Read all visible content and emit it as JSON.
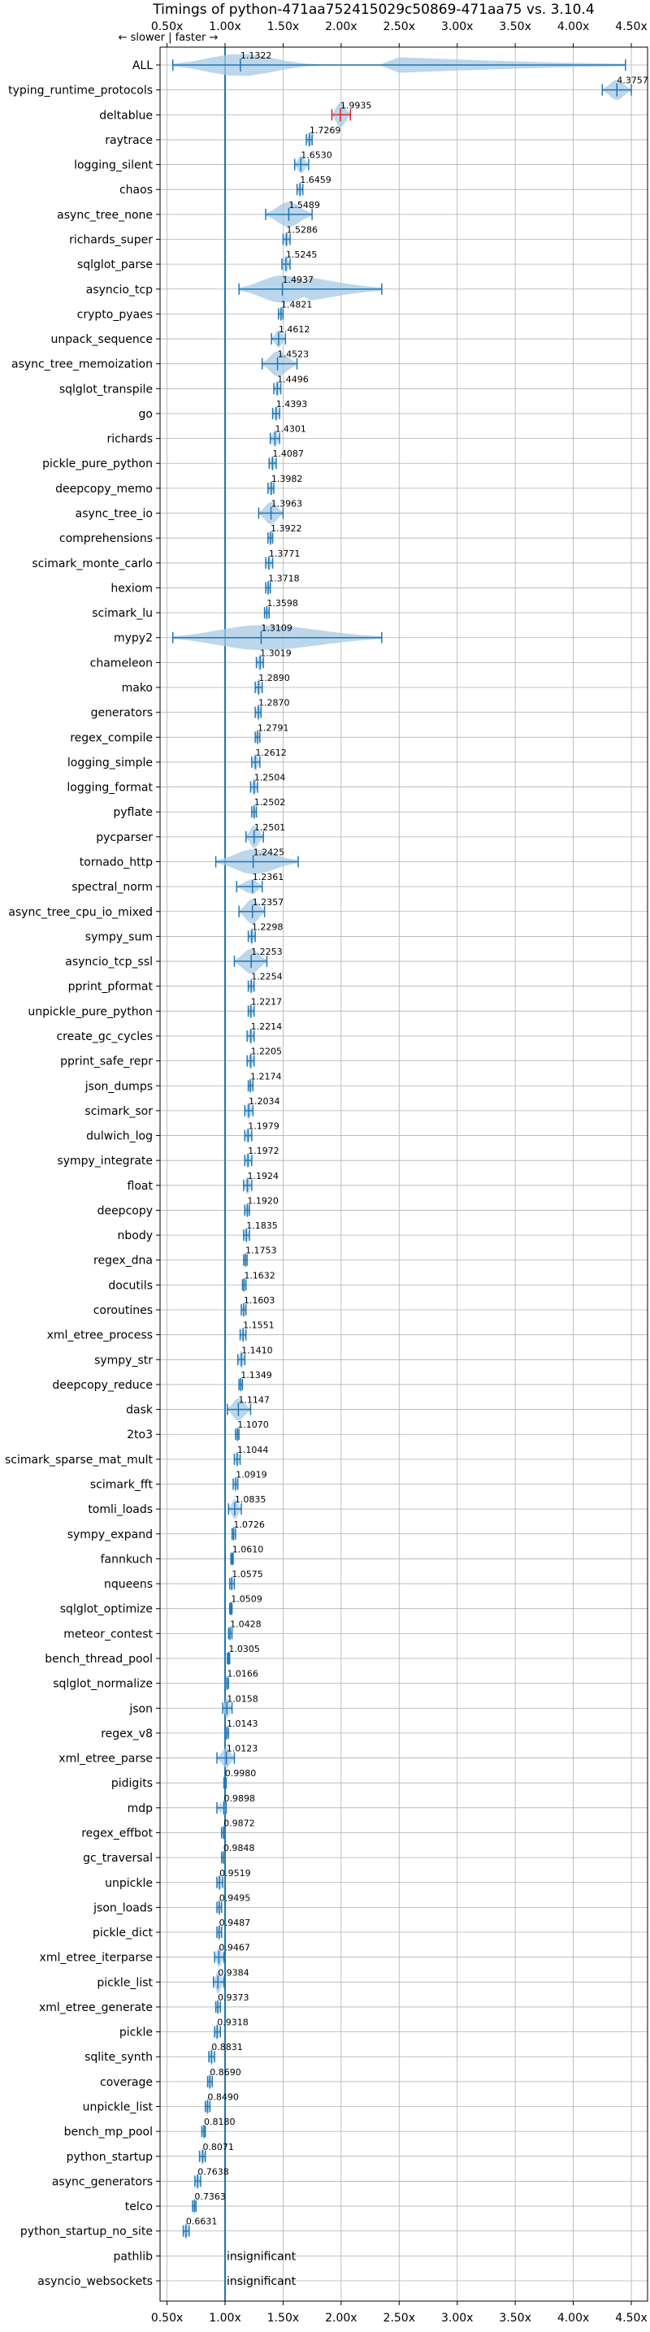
{
  "chart_data": {
    "type": "violin",
    "title": "Timings of python-471aa752415029c50869-471aa75 vs. 3.10.4",
    "direction_label": "← slower | faster →",
    "xlim": [
      0.44,
      4.64
    ],
    "xticks": [
      0.5,
      1.0,
      1.5,
      2.0,
      2.5,
      3.0,
      3.5,
      4.0,
      4.5
    ],
    "xtick_labels": [
      "0.50x",
      "1.00x",
      "1.50x",
      "2.00x",
      "2.50x",
      "3.00x",
      "3.50x",
      "4.00x",
      "4.50x"
    ],
    "reference_line": 1.0,
    "grid": true,
    "colors": {
      "violin": "#a6c8e6",
      "line": "#1f77b4",
      "highlight": "#d62728"
    },
    "benchmarks": [
      {
        "name": "ALL",
        "value": 1.1322,
        "value_label": "1.1322",
        "lo": 0.55,
        "hi": 4.45,
        "width": 0.45
      },
      {
        "name": "typing_runtime_protocols",
        "value": 4.3757,
        "value_label": "4.3757",
        "lo": 4.25,
        "hi": 4.5,
        "width": 0.4
      },
      {
        "name": "deltablue",
        "value": 1.9935,
        "value_label": "1.9935",
        "lo": 1.92,
        "hi": 2.08,
        "width": 0.5,
        "highlight": true
      },
      {
        "name": "raytrace",
        "value": 1.7269,
        "value_label": "1.7269",
        "lo": 1.7,
        "hi": 1.75,
        "width": 0.3
      },
      {
        "name": "logging_silent",
        "value": 1.653,
        "value_label": "1.6530",
        "lo": 1.6,
        "hi": 1.72,
        "width": 0.35
      },
      {
        "name": "chaos",
        "value": 1.6459,
        "value_label": "1.6459",
        "lo": 1.62,
        "hi": 1.67,
        "width": 0.3
      },
      {
        "name": "async_tree_none",
        "value": 1.5489,
        "value_label": "1.5489",
        "lo": 1.35,
        "hi": 1.75,
        "width": 0.5
      },
      {
        "name": "richards_super",
        "value": 1.5286,
        "value_label": "1.5286",
        "lo": 1.5,
        "hi": 1.56,
        "width": 0.3
      },
      {
        "name": "sqlglot_parse",
        "value": 1.5245,
        "value_label": "1.5245",
        "lo": 1.49,
        "hi": 1.56,
        "width": 0.35
      },
      {
        "name": "asyncio_tcp",
        "value": 1.4937,
        "value_label": "1.4937",
        "lo": 1.12,
        "hi": 2.35,
        "width": 0.55
      },
      {
        "name": "crypto_pyaes",
        "value": 1.4821,
        "value_label": "1.4821",
        "lo": 1.46,
        "hi": 1.5,
        "width": 0.3
      },
      {
        "name": "unpack_sequence",
        "value": 1.4612,
        "value_label": "1.4612",
        "lo": 1.4,
        "hi": 1.52,
        "width": 0.35
      },
      {
        "name": "async_tree_memoization",
        "value": 1.4523,
        "value_label": "1.4523",
        "lo": 1.32,
        "hi": 1.62,
        "width": 0.5
      },
      {
        "name": "sqlglot_transpile",
        "value": 1.4496,
        "value_label": "1.4496",
        "lo": 1.42,
        "hi": 1.48,
        "width": 0.3
      },
      {
        "name": "go",
        "value": 1.4393,
        "value_label": "1.4393",
        "lo": 1.41,
        "hi": 1.47,
        "width": 0.3
      },
      {
        "name": "richards",
        "value": 1.4301,
        "value_label": "1.4301",
        "lo": 1.39,
        "hi": 1.47,
        "width": 0.35
      },
      {
        "name": "pickle_pure_python",
        "value": 1.4087,
        "value_label": "1.4087",
        "lo": 1.38,
        "hi": 1.44,
        "width": 0.3
      },
      {
        "name": "deepcopy_memo",
        "value": 1.3982,
        "value_label": "1.3982",
        "lo": 1.37,
        "hi": 1.42,
        "width": 0.3
      },
      {
        "name": "async_tree_io",
        "value": 1.3963,
        "value_label": "1.3963",
        "lo": 1.29,
        "hi": 1.5,
        "width": 0.45
      },
      {
        "name": "comprehensions",
        "value": 1.3922,
        "value_label": "1.3922",
        "lo": 1.37,
        "hi": 1.41,
        "width": 0.3
      },
      {
        "name": "scimark_monte_carlo",
        "value": 1.3771,
        "value_label": "1.3771",
        "lo": 1.35,
        "hi": 1.41,
        "width": 0.3
      },
      {
        "name": "hexiom",
        "value": 1.3718,
        "value_label": "1.3718",
        "lo": 1.35,
        "hi": 1.39,
        "width": 0.3
      },
      {
        "name": "scimark_lu",
        "value": 1.3598,
        "value_label": "1.3598",
        "lo": 1.34,
        "hi": 1.38,
        "width": 0.25
      },
      {
        "name": "mypy2",
        "value": 1.3109,
        "value_label": "1.3109",
        "lo": 0.55,
        "hi": 2.35,
        "width": 0.5
      },
      {
        "name": "chameleon",
        "value": 1.3019,
        "value_label": "1.3019",
        "lo": 1.27,
        "hi": 1.33,
        "width": 0.35
      },
      {
        "name": "mako",
        "value": 1.289,
        "value_label": "1.2890",
        "lo": 1.26,
        "hi": 1.32,
        "width": 0.35
      },
      {
        "name": "generators",
        "value": 1.287,
        "value_label": "1.2870",
        "lo": 1.26,
        "hi": 1.31,
        "width": 0.35
      },
      {
        "name": "regex_compile",
        "value": 1.2791,
        "value_label": "1.2791",
        "lo": 1.26,
        "hi": 1.3,
        "width": 0.3
      },
      {
        "name": "logging_simple",
        "value": 1.2612,
        "value_label": "1.2612",
        "lo": 1.23,
        "hi": 1.3,
        "width": 0.35
      },
      {
        "name": "logging_format",
        "value": 1.2504,
        "value_label": "1.2504",
        "lo": 1.22,
        "hi": 1.28,
        "width": 0.35
      },
      {
        "name": "pyflate",
        "value": 1.2502,
        "value_label": "1.2502",
        "lo": 1.23,
        "hi": 1.27,
        "width": 0.3
      },
      {
        "name": "pycparser",
        "value": 1.2501,
        "value_label": "1.2501",
        "lo": 1.18,
        "hi": 1.33,
        "width": 0.45
      },
      {
        "name": "tornado_http",
        "value": 1.2425,
        "value_label": "1.2425",
        "lo": 0.92,
        "hi": 1.63,
        "width": 0.5
      },
      {
        "name": "spectral_norm",
        "value": 1.2361,
        "value_label": "1.2361",
        "lo": 1.1,
        "hi": 1.32,
        "width": 0.3
      },
      {
        "name": "async_tree_cpu_io_mixed",
        "value": 1.2357,
        "value_label": "1.2357",
        "lo": 1.12,
        "hi": 1.34,
        "width": 0.5
      },
      {
        "name": "sympy_sum",
        "value": 1.2298,
        "value_label": "1.2298",
        "lo": 1.2,
        "hi": 1.26,
        "width": 0.35
      },
      {
        "name": "asyncio_tcp_ssl",
        "value": 1.2253,
        "value_label": "1.2253",
        "lo": 1.08,
        "hi": 1.36,
        "width": 0.5
      },
      {
        "name": "pprint_pformat",
        "value": 1.2254,
        "value_label": "1.2254",
        "lo": 1.2,
        "hi": 1.25,
        "width": 0.3
      },
      {
        "name": "unpickle_pure_python",
        "value": 1.2217,
        "value_label": "1.2217",
        "lo": 1.2,
        "hi": 1.25,
        "width": 0.3
      },
      {
        "name": "create_gc_cycles",
        "value": 1.2214,
        "value_label": "1.2214",
        "lo": 1.19,
        "hi": 1.25,
        "width": 0.35
      },
      {
        "name": "pprint_safe_repr",
        "value": 1.2205,
        "value_label": "1.2205",
        "lo": 1.19,
        "hi": 1.25,
        "width": 0.35
      },
      {
        "name": "json_dumps",
        "value": 1.2174,
        "value_label": "1.2174",
        "lo": 1.2,
        "hi": 1.24,
        "width": 0.3
      },
      {
        "name": "scimark_sor",
        "value": 1.2034,
        "value_label": "1.2034",
        "lo": 1.17,
        "hi": 1.24,
        "width": 0.35
      },
      {
        "name": "dulwich_log",
        "value": 1.1979,
        "value_label": "1.1979",
        "lo": 1.17,
        "hi": 1.23,
        "width": 0.3
      },
      {
        "name": "sympy_integrate",
        "value": 1.1972,
        "value_label": "1.1972",
        "lo": 1.17,
        "hi": 1.23,
        "width": 0.3
      },
      {
        "name": "float",
        "value": 1.1924,
        "value_label": "1.1924",
        "lo": 1.16,
        "hi": 1.23,
        "width": 0.35
      },
      {
        "name": "deepcopy",
        "value": 1.192,
        "value_label": "1.1920",
        "lo": 1.17,
        "hi": 1.21,
        "width": 0.3
      },
      {
        "name": "nbody",
        "value": 1.1835,
        "value_label": "1.1835",
        "lo": 1.16,
        "hi": 1.21,
        "width": 0.3
      },
      {
        "name": "regex_dna",
        "value": 1.1753,
        "value_label": "1.1753",
        "lo": 1.16,
        "hi": 1.19,
        "width": 0.3
      },
      {
        "name": "docutils",
        "value": 1.1632,
        "value_label": "1.1632",
        "lo": 1.15,
        "hi": 1.18,
        "width": 0.3
      },
      {
        "name": "coroutines",
        "value": 1.1603,
        "value_label": "1.1603",
        "lo": 1.14,
        "hi": 1.18,
        "width": 0.3
      },
      {
        "name": "xml_etree_process",
        "value": 1.1551,
        "value_label": "1.1551",
        "lo": 1.13,
        "hi": 1.18,
        "width": 0.3
      },
      {
        "name": "sympy_str",
        "value": 1.141,
        "value_label": "1.1410",
        "lo": 1.11,
        "hi": 1.17,
        "width": 0.35
      },
      {
        "name": "deepcopy_reduce",
        "value": 1.1349,
        "value_label": "1.1349",
        "lo": 1.12,
        "hi": 1.15,
        "width": 0.3
      },
      {
        "name": "dask",
        "value": 1.1147,
        "value_label": "1.1147",
        "lo": 1.02,
        "hi": 1.22,
        "width": 0.45
      },
      {
        "name": "2to3",
        "value": 1.107,
        "value_label": "1.1070",
        "lo": 1.09,
        "hi": 1.12,
        "width": 0.3
      },
      {
        "name": "scimark_sparse_mat_mult",
        "value": 1.1044,
        "value_label": "1.1044",
        "lo": 1.08,
        "hi": 1.13,
        "width": 0.3
      },
      {
        "name": "scimark_fft",
        "value": 1.0919,
        "value_label": "1.0919",
        "lo": 1.07,
        "hi": 1.11,
        "width": 0.3
      },
      {
        "name": "tomli_loads",
        "value": 1.0835,
        "value_label": "1.0835",
        "lo": 1.03,
        "hi": 1.14,
        "width": 0.4
      },
      {
        "name": "sympy_expand",
        "value": 1.0726,
        "value_label": "1.0726",
        "lo": 1.06,
        "hi": 1.09,
        "width": 0.3
      },
      {
        "name": "fannkuch",
        "value": 1.061,
        "value_label": "1.0610",
        "lo": 1.05,
        "hi": 1.07,
        "width": 0.25
      },
      {
        "name": "nqueens",
        "value": 1.0575,
        "value_label": "1.0575",
        "lo": 1.04,
        "hi": 1.08,
        "width": 0.3
      },
      {
        "name": "sqlglot_optimize",
        "value": 1.0509,
        "value_label": "1.0509",
        "lo": 1.04,
        "hi": 1.06,
        "width": 0.3
      },
      {
        "name": "meteor_contest",
        "value": 1.0428,
        "value_label": "1.0428",
        "lo": 1.03,
        "hi": 1.06,
        "width": 0.3
      },
      {
        "name": "bench_thread_pool",
        "value": 1.0305,
        "value_label": "1.0305",
        "lo": 1.02,
        "hi": 1.04,
        "width": 0.25
      },
      {
        "name": "sqlglot_normalize",
        "value": 1.0166,
        "value_label": "1.0166",
        "lo": 1.0,
        "hi": 1.03,
        "width": 0.3
      },
      {
        "name": "json",
        "value": 1.0158,
        "value_label": "1.0158",
        "lo": 0.98,
        "hi": 1.06,
        "width": 0.4
      },
      {
        "name": "regex_v8",
        "value": 1.0143,
        "value_label": "1.0143",
        "lo": 1.0,
        "hi": 1.03,
        "width": 0.25
      },
      {
        "name": "xml_etree_parse",
        "value": 1.0123,
        "value_label": "1.0123",
        "lo": 0.93,
        "hi": 1.08,
        "width": 0.4
      },
      {
        "name": "pidigits",
        "value": 0.998,
        "value_label": "0.9980",
        "lo": 0.99,
        "hi": 1.01,
        "width": 0.25
      },
      {
        "name": "mdp",
        "value": 0.9898,
        "value_label": "0.9898",
        "lo": 0.93,
        "hi": 1.01,
        "width": 0.35
      },
      {
        "name": "regex_effbot",
        "value": 0.9872,
        "value_label": "0.9872",
        "lo": 0.97,
        "hi": 1.0,
        "width": 0.25
      },
      {
        "name": "gc_traversal",
        "value": 0.9848,
        "value_label": "0.9848",
        "lo": 0.97,
        "hi": 1.0,
        "width": 0.25
      },
      {
        "name": "unpickle",
        "value": 0.9519,
        "value_label": "0.9519",
        "lo": 0.93,
        "hi": 0.98,
        "width": 0.35
      },
      {
        "name": "json_loads",
        "value": 0.9495,
        "value_label": "0.9495",
        "lo": 0.93,
        "hi": 0.97,
        "width": 0.35
      },
      {
        "name": "pickle_dict",
        "value": 0.9487,
        "value_label": "0.9487",
        "lo": 0.93,
        "hi": 0.97,
        "width": 0.35
      },
      {
        "name": "xml_etree_iterparse",
        "value": 0.9467,
        "value_label": "0.9467",
        "lo": 0.91,
        "hi": 0.99,
        "width": 0.4
      },
      {
        "name": "pickle_list",
        "value": 0.9384,
        "value_label": "0.9384",
        "lo": 0.9,
        "hi": 0.99,
        "width": 0.45
      },
      {
        "name": "xml_etree_generate",
        "value": 0.9373,
        "value_label": "0.9373",
        "lo": 0.92,
        "hi": 0.96,
        "width": 0.3
      },
      {
        "name": "pickle",
        "value": 0.9318,
        "value_label": "0.9318",
        "lo": 0.91,
        "hi": 0.96,
        "width": 0.35
      },
      {
        "name": "sqlite_synth",
        "value": 0.8831,
        "value_label": "0.8831",
        "lo": 0.86,
        "hi": 0.91,
        "width": 0.35
      },
      {
        "name": "coverage",
        "value": 0.869,
        "value_label": "0.8690",
        "lo": 0.85,
        "hi": 0.89,
        "width": 0.35
      },
      {
        "name": "unpickle_list",
        "value": 0.849,
        "value_label": "0.8490",
        "lo": 0.83,
        "hi": 0.87,
        "width": 0.35
      },
      {
        "name": "bench_mp_pool",
        "value": 0.818,
        "value_label": "0.8180",
        "lo": 0.8,
        "hi": 0.83,
        "width": 0.3
      },
      {
        "name": "python_startup",
        "value": 0.8071,
        "value_label": "0.8071",
        "lo": 0.78,
        "hi": 0.83,
        "width": 0.35
      },
      {
        "name": "async_generators",
        "value": 0.7638,
        "value_label": "0.7638",
        "lo": 0.74,
        "hi": 0.79,
        "width": 0.35
      },
      {
        "name": "telco",
        "value": 0.7363,
        "value_label": "0.7363",
        "lo": 0.72,
        "hi": 0.75,
        "width": 0.3
      },
      {
        "name": "python_startup_no_site",
        "value": 0.6631,
        "value_label": "0.6631",
        "lo": 0.64,
        "hi": 0.69,
        "width": 0.35
      },
      {
        "name": "pathlib",
        "insignificant": true,
        "value_label": "insignificant"
      },
      {
        "name": "asyncio_websockets",
        "insignificant": true,
        "value_label": "insignificant"
      }
    ]
  }
}
